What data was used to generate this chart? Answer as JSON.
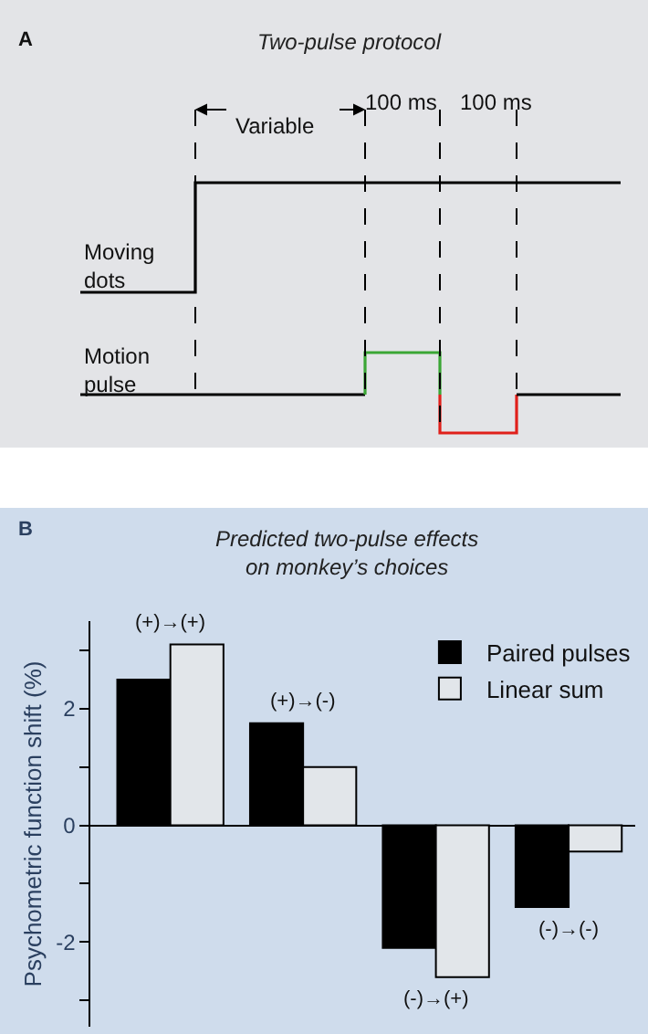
{
  "chart_data": [
    {
      "type": "other",
      "title": "Two-pulse protocol",
      "annotations": [
        "A",
        "Variable",
        "100 ms",
        "100 ms",
        "Moving dots",
        "Motion pulse"
      ]
    },
    {
      "type": "bar",
      "title": "Predicted two-pulse effects\non monkey’s choices",
      "ylabel": "Psychometric function shift (%)",
      "annotations": [
        "B"
      ],
      "categories": [
        "(+)→(+)",
        "(+)→(-)",
        "(-)→(+)",
        "(-)→(-)"
      ],
      "series": [
        {
          "name": "Paired pulses",
          "color": "#000000",
          "values": [
            2.5,
            1.75,
            -2.1,
            -1.4
          ]
        },
        {
          "name": "Linear sum",
          "color": "#e2e6ea",
          "values": [
            3.1,
            1.0,
            -2.6,
            -0.45
          ]
        }
      ],
      "ylim": [
        -3.45,
        3.5
      ],
      "yticks": [
        {
          "value": -3,
          "label": null
        },
        -2,
        {
          "value": -1,
          "label": null
        },
        0,
        {
          "value": 1,
          "label": null
        },
        2,
        {
          "value": 3,
          "label": null
        }
      ],
      "legend": "top right"
    }
  ]
}
